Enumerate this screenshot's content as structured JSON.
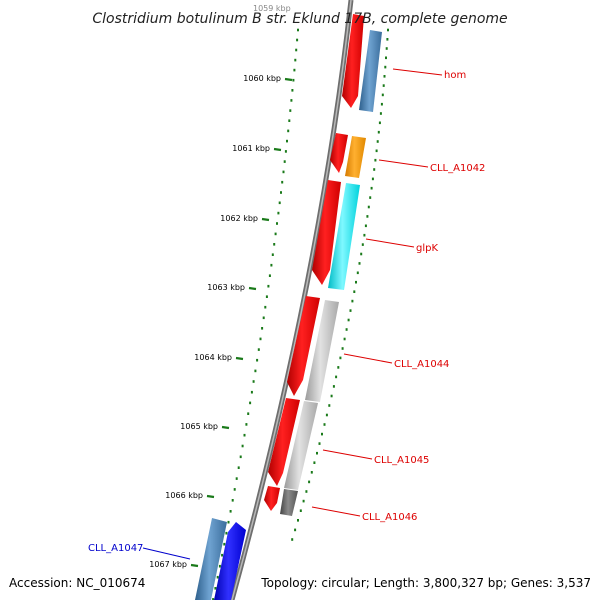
{
  "title": "Clostridium botulinum B str. Eklund 17B, complete genome",
  "accession": "Accession: NC_010674",
  "topology": "Topology: circular; Length: 3,800,327 bp; Genes: 3,537",
  "tick_labels": [
    "1059 kbp",
    "1060 kbp",
    "1061 kbp",
    "1062 kbp",
    "1063 kbp",
    "1064 kbp",
    "1065 kbp",
    "1066 kbp",
    "1067 kbp"
  ],
  "genes": [
    {
      "label": "hom",
      "label_color": "#dd0000"
    },
    {
      "label": "CLL_A1042",
      "label_color": "#dd0000"
    },
    {
      "label": "glpK",
      "label_color": "#dd0000"
    },
    {
      "label": "CLL_A1044",
      "label_color": "#dd0000"
    },
    {
      "label": "CLL_A1045",
      "label_color": "#dd0000"
    },
    {
      "label": "CLL_A1046",
      "label_color": "#dd0000"
    },
    {
      "label": "CLL_A1047",
      "label_color": "#0000cc"
    }
  ],
  "colors": {
    "backbone": "#7a7a7a",
    "tick": "#1a7a1a",
    "red": "#ff0000",
    "steelblue": "#4a82b4",
    "orange": "#ff9900",
    "cyan": "#00e5ee",
    "gray": "#bbbbbb",
    "darkgray": "#666666",
    "blue": "#0000ee"
  }
}
